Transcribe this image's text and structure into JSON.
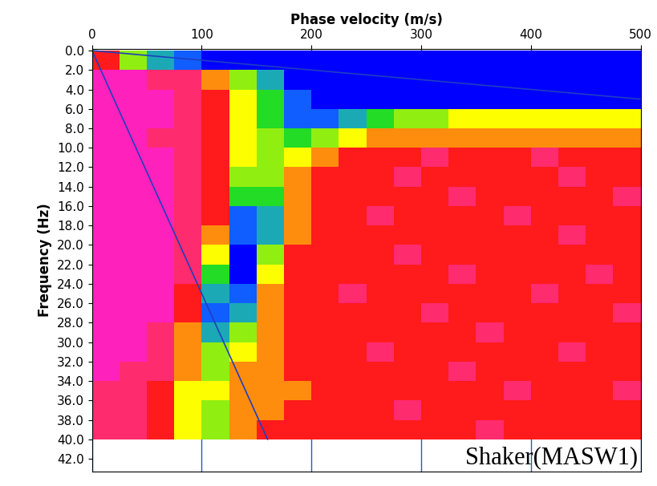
{
  "chart_data": {
    "type": "heatmap",
    "xlabel": "Phase velocity (m/s)",
    "ylabel": "Frequency (Hz)",
    "annotation": "Shaker(MASW1)",
    "xlim": [
      0,
      500
    ],
    "ylim": [
      43.3,
      -0.2
    ],
    "xticks": [
      0,
      100,
      200,
      300,
      400,
      500
    ],
    "yticks": [
      {
        "value": 0,
        "label": "0.0"
      },
      {
        "value": 2,
        "label": "2.0"
      },
      {
        "value": 4,
        "label": "4.0"
      },
      {
        "value": 6,
        "label": "6.0"
      },
      {
        "value": 8,
        "label": "8.0"
      },
      {
        "value": 10,
        "label": "10.0"
      },
      {
        "value": 12,
        "label": "12.0"
      },
      {
        "value": 14,
        "label": "14.0"
      },
      {
        "value": 16,
        "label": "16.0"
      },
      {
        "value": 18,
        "label": "18.0"
      },
      {
        "value": 20,
        "label": "20.0"
      },
      {
        "value": 22,
        "label": "22.0"
      },
      {
        "value": 24,
        "label": "24.0"
      },
      {
        "value": 26,
        "label": "26.0"
      },
      {
        "value": 28,
        "label": "28.0"
      },
      {
        "value": 30,
        "label": "30.0"
      },
      {
        "value": 32,
        "label": "32.0"
      },
      {
        "value": 34,
        "label": "34.0"
      },
      {
        "value": 36,
        "label": "36.0"
      },
      {
        "value": 38,
        "label": "38.0"
      },
      {
        "value": 40,
        "label": "40.0"
      },
      {
        "value": 42,
        "label": "42.0"
      }
    ],
    "grid": true,
    "x_edges": [
      0,
      25,
      50,
      75,
      100,
      125,
      150,
      175,
      200,
      225,
      250,
      275,
      300,
      325,
      350,
      375,
      400,
      425,
      450,
      475,
      500
    ],
    "y_edges": [
      0,
      2,
      4,
      6,
      8,
      10,
      12,
      14,
      16,
      18,
      20,
      22,
      24,
      26,
      28,
      30,
      32,
      34,
      36,
      38,
      40
    ],
    "cell_range": [
      0,
      1
    ],
    "cells": [
      [
        0.3,
        0.6,
        0.8,
        0.9,
        1,
        1,
        1,
        1,
        1,
        1,
        1,
        1,
        1,
        1,
        1,
        1,
        1,
        1,
        1,
        1
      ],
      [
        0.1,
        0.1,
        0.2,
        0.2,
        0.4,
        0.6,
        0.8,
        1,
        1,
        1,
        1,
        1,
        1,
        1,
        1,
        1,
        1,
        1,
        1,
        1
      ],
      [
        0.1,
        0.1,
        0.1,
        0.2,
        0.3,
        0.5,
        0.7,
        0.9,
        1,
        1,
        1,
        1,
        1,
        1,
        1,
        1,
        1,
        1,
        1,
        1
      ],
      [
        0.1,
        0.1,
        0.1,
        0.2,
        0.3,
        0.5,
        0.7,
        0.9,
        0.9,
        0.8,
        0.7,
        0.6,
        0.6,
        0.5,
        0.5,
        0.5,
        0.5,
        0.5,
        0.5,
        0.5
      ],
      [
        0.1,
        0.1,
        0.2,
        0.2,
        0.3,
        0.5,
        0.6,
        0.7,
        0.6,
        0.5,
        0.4,
        0.4,
        0.4,
        0.4,
        0.4,
        0.4,
        0.4,
        0.4,
        0.4,
        0.4
      ],
      [
        0.1,
        0.1,
        0.1,
        0.2,
        0.3,
        0.5,
        0.6,
        0.5,
        0.4,
        0.3,
        0.3,
        0.3,
        0.2,
        0.3,
        0.3,
        0.3,
        0.2,
        0.3,
        0.3,
        0.3
      ],
      [
        0.1,
        0.1,
        0.1,
        0.2,
        0.3,
        0.6,
        0.6,
        0.4,
        0.3,
        0.3,
        0.3,
        0.2,
        0.3,
        0.3,
        0.3,
        0.3,
        0.3,
        0.2,
        0.3,
        0.3
      ],
      [
        0.1,
        0.1,
        0.1,
        0.2,
        0.3,
        0.7,
        0.7,
        0.4,
        0.3,
        0.3,
        0.3,
        0.3,
        0.3,
        0.2,
        0.3,
        0.3,
        0.3,
        0.3,
        0.3,
        0.2
      ],
      [
        0.1,
        0.1,
        0.1,
        0.2,
        0.3,
        0.9,
        0.8,
        0.4,
        0.3,
        0.3,
        0.2,
        0.3,
        0.3,
        0.3,
        0.3,
        0.2,
        0.3,
        0.3,
        0.3,
        0.3
      ],
      [
        0.1,
        0.1,
        0.1,
        0.2,
        0.4,
        0.9,
        0.8,
        0.4,
        0.3,
        0.3,
        0.3,
        0.3,
        0.3,
        0.3,
        0.3,
        0.3,
        0.3,
        0.2,
        0.3,
        0.3
      ],
      [
        0.1,
        0.1,
        0.1,
        0.2,
        0.5,
        1,
        0.6,
        0.3,
        0.3,
        0.3,
        0.3,
        0.2,
        0.3,
        0.3,
        0.3,
        0.3,
        0.3,
        0.3,
        0.3,
        0.3
      ],
      [
        0.1,
        0.1,
        0.1,
        0.2,
        0.7,
        1,
        0.5,
        0.3,
        0.3,
        0.3,
        0.3,
        0.3,
        0.3,
        0.2,
        0.3,
        0.3,
        0.3,
        0.3,
        0.2,
        0.3
      ],
      [
        0.1,
        0.1,
        0.1,
        0.3,
        0.8,
        0.9,
        0.4,
        0.3,
        0.3,
        0.2,
        0.3,
        0.3,
        0.3,
        0.3,
        0.3,
        0.3,
        0.2,
        0.3,
        0.3,
        0.3
      ],
      [
        0.1,
        0.1,
        0.1,
        0.3,
        0.9,
        0.8,
        0.4,
        0.3,
        0.3,
        0.3,
        0.3,
        0.3,
        0.2,
        0.3,
        0.3,
        0.3,
        0.3,
        0.3,
        0.3,
        0.2
      ],
      [
        0.1,
        0.1,
        0.2,
        0.4,
        0.8,
        0.6,
        0.4,
        0.3,
        0.3,
        0.3,
        0.3,
        0.3,
        0.3,
        0.3,
        0.2,
        0.3,
        0.3,
        0.3,
        0.3,
        0.3
      ],
      [
        0.1,
        0.1,
        0.2,
        0.4,
        0.6,
        0.5,
        0.4,
        0.3,
        0.3,
        0.3,
        0.2,
        0.3,
        0.3,
        0.3,
        0.3,
        0.3,
        0.3,
        0.2,
        0.3,
        0.3
      ],
      [
        0.1,
        0.2,
        0.2,
        0.4,
        0.6,
        0.4,
        0.4,
        0.3,
        0.3,
        0.3,
        0.3,
        0.3,
        0.3,
        0.2,
        0.3,
        0.3,
        0.3,
        0.3,
        0.3,
        0.3
      ],
      [
        0.2,
        0.2,
        0.3,
        0.5,
        0.5,
        0.4,
        0.4,
        0.4,
        0.3,
        0.3,
        0.3,
        0.3,
        0.3,
        0.3,
        0.3,
        0.2,
        0.3,
        0.3,
        0.3,
        0.2
      ],
      [
        0.2,
        0.2,
        0.3,
        0.5,
        0.6,
        0.4,
        0.4,
        0.3,
        0.3,
        0.3,
        0.3,
        0.2,
        0.3,
        0.3,
        0.3,
        0.3,
        0.3,
        0.3,
        0.3,
        0.3
      ],
      [
        0.2,
        0.2,
        0.3,
        0.5,
        0.6,
        0.4,
        0.3,
        0.3,
        0.3,
        0.3,
        0.3,
        0.3,
        0.3,
        0.3,
        0.2,
        0.3,
        0.3,
        0.3,
        0.3,
        0.3
      ]
    ],
    "series": [
      {
        "type": "line",
        "color": "#1f3fbf",
        "x": [
          0,
          160
        ],
        "y": [
          0,
          40
        ]
      },
      {
        "type": "line",
        "color": "#1f3fbf",
        "x": [
          0,
          500
        ],
        "y": [
          0,
          5
        ]
      }
    ]
  }
}
